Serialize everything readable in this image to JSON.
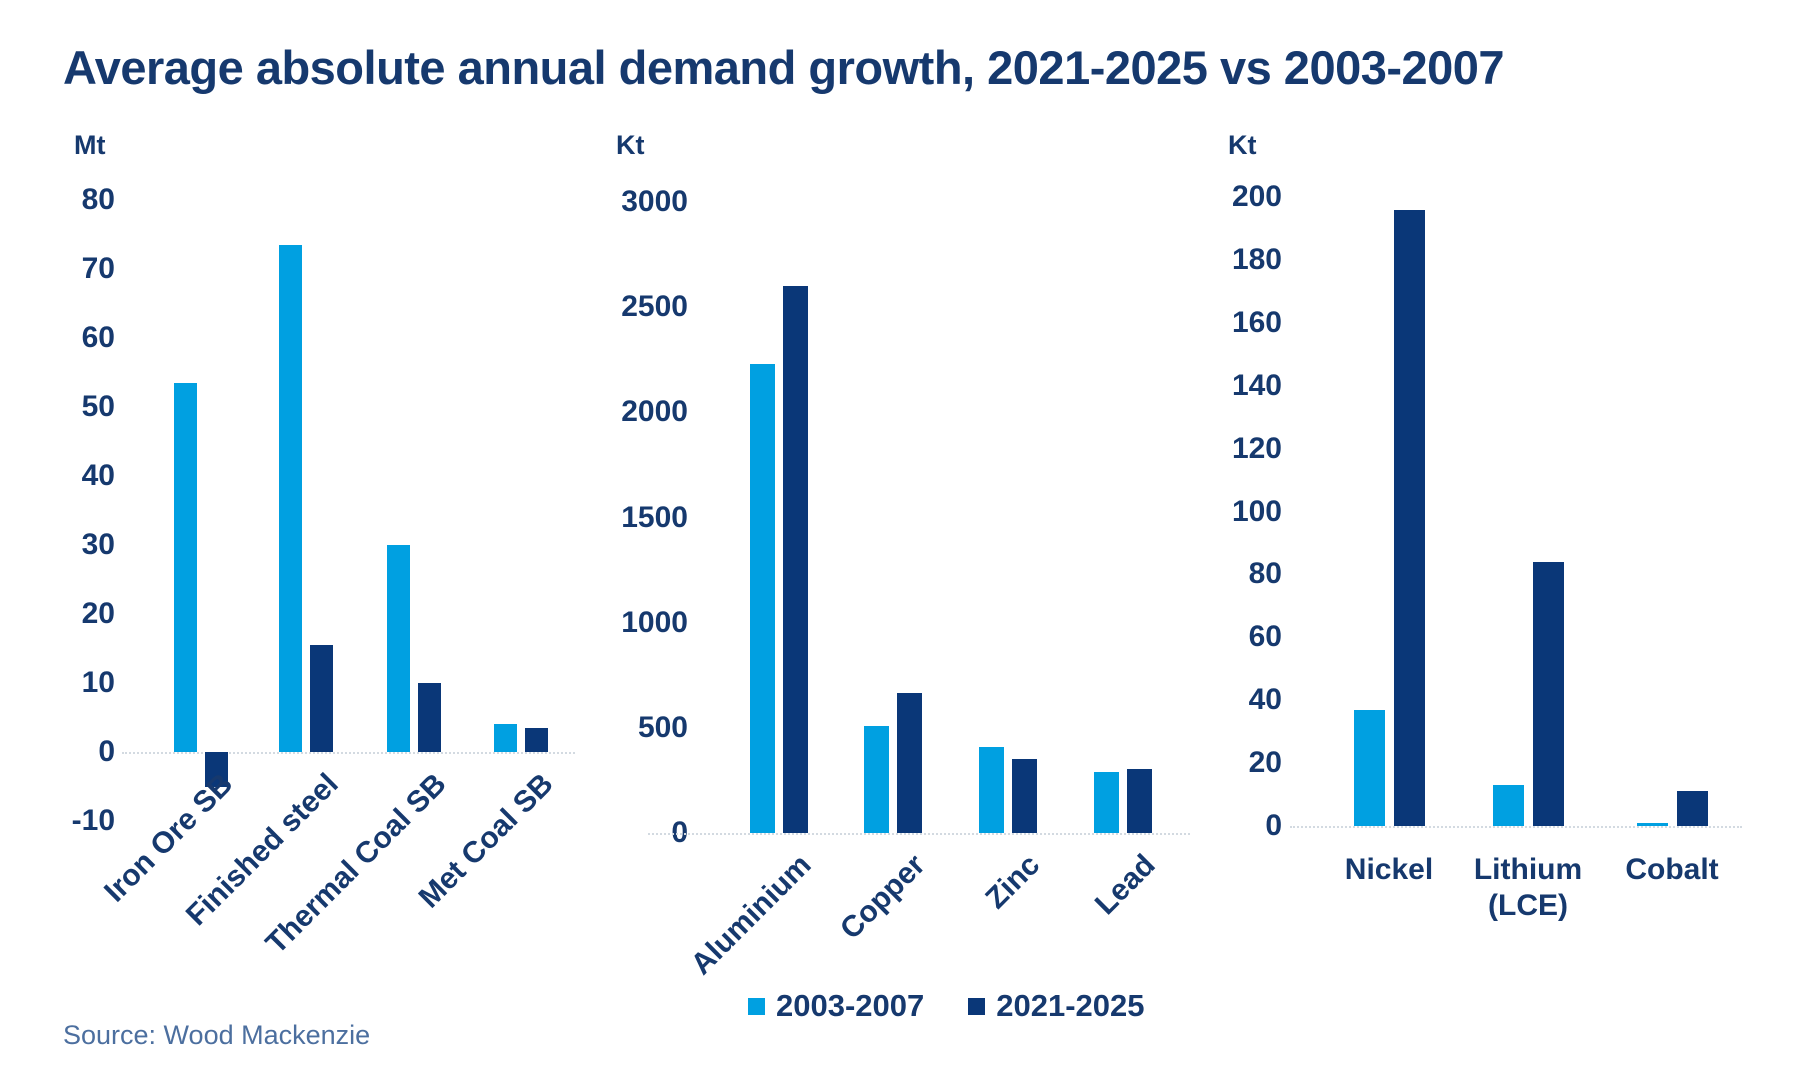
{
  "page": {
    "title": "Average absolute annual demand growth, 2021-2025 vs 2003-2007",
    "source": "Source: Wood Mackenzie"
  },
  "colors": {
    "series_2003_2007": "#00A0E1",
    "series_2021_2025": "#0A3778",
    "text_navy": "#16396E",
    "source_text": "#4C6F9F",
    "axis_line": "#D3DAE1"
  },
  "legend": {
    "position": "bottom-center",
    "items": [
      {
        "label": "2003-2007",
        "color": "#00A0E1"
      },
      {
        "label": "2021-2025",
        "color": "#0A3778"
      }
    ]
  },
  "chart_data": [
    {
      "type": "bar",
      "unit": "Mt",
      "categories": [
        "Iron Ore SB",
        "Finished steel",
        "Thermal Coal SB",
        "Met Coal SB"
      ],
      "series": [
        {
          "name": "2003-2007",
          "values": [
            53.5,
            73.5,
            30,
            4
          ]
        },
        {
          "name": "2021-2025",
          "values": [
            -5,
            15.5,
            10,
            3.5
          ]
        }
      ],
      "ylim": [
        -10,
        80
      ],
      "yticks": [
        80,
        70,
        60,
        50,
        40,
        30,
        20,
        10,
        0,
        -10
      ],
      "grid": false,
      "category_label_rotation": 45
    },
    {
      "type": "bar",
      "unit": "Kt",
      "categories": [
        "Aluminium",
        "Copper",
        "Zinc",
        "Lead"
      ],
      "series": [
        {
          "name": "2003-2007",
          "values": [
            2230,
            510,
            410,
            290
          ]
        },
        {
          "name": "2021-2025",
          "values": [
            2600,
            665,
            350,
            305
          ]
        }
      ],
      "ylim": [
        0,
        3000
      ],
      "yticks": [
        3000,
        2500,
        2000,
        1500,
        1000,
        500,
        0
      ],
      "grid": false,
      "category_label_rotation": 45
    },
    {
      "type": "bar",
      "unit": "Kt",
      "categories": [
        "Nickel",
        "Lithium (LCE)",
        "Cobalt"
      ],
      "series": [
        {
          "name": "2003-2007",
          "values": [
            37,
            13,
            1
          ]
        },
        {
          "name": "2021-2025",
          "values": [
            196,
            84,
            11
          ]
        }
      ],
      "ylim": [
        0,
        200
      ],
      "yticks": [
        200,
        180,
        160,
        140,
        120,
        100,
        80,
        60,
        40,
        20,
        0
      ],
      "grid": false,
      "category_label_rotation": 0
    }
  ]
}
